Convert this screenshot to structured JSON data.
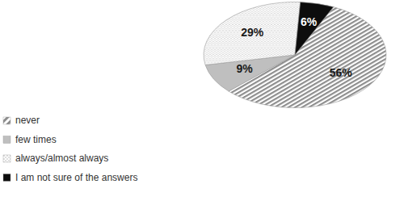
{
  "chart_data": {
    "type": "pie",
    "categories": [
      "never",
      "few times",
      "always/almost always",
      "I am not sure of the answers"
    ],
    "values": [
      56,
      9,
      29,
      6
    ],
    "value_labels": [
      "56%",
      "9%",
      "29%",
      "6%"
    ],
    "colors": [
      "#8c8c8c",
      "#bfbfbf",
      "#a6a6a6",
      "#0d0d0d"
    ],
    "data_labels": true,
    "legend": "bottom-left"
  }
}
